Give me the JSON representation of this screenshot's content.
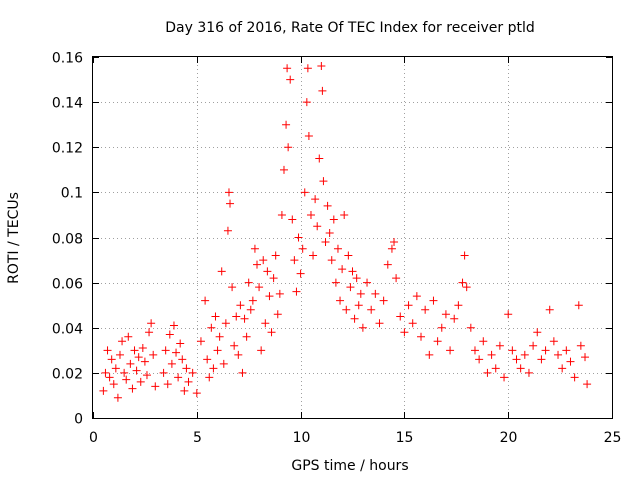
{
  "chart_data": {
    "type": "scatter",
    "title": "Day 316 of 2016, Rate Of TEC Index for receiver ptld",
    "xlabel": "GPS time / hours",
    "ylabel": "ROTI / TECUs",
    "xlim": [
      0,
      25
    ],
    "ylim": [
      0,
      0.16
    ],
    "grid": true,
    "marker": "+",
    "series_color": "#ff0000",
    "xticks": [
      {
        "value": 0,
        "label": "0"
      },
      {
        "value": 5,
        "label": "5"
      },
      {
        "value": 10,
        "label": "10"
      },
      {
        "value": 15,
        "label": "15"
      },
      {
        "value": 20,
        "label": "20"
      },
      {
        "value": 25,
        "label": "25"
      }
    ],
    "yticks": [
      {
        "value": 0,
        "label": "0"
      },
      {
        "value": 0.02,
        "label": "0.02"
      },
      {
        "value": 0.04,
        "label": "0.04"
      },
      {
        "value": 0.06,
        "label": "0.06"
      },
      {
        "value": 0.08,
        "label": "0.08"
      },
      {
        "value": 0.1,
        "label": "0.1"
      },
      {
        "value": 0.12,
        "label": "0.12"
      },
      {
        "value": 0.14,
        "label": "0.14"
      },
      {
        "value": 0.16,
        "label": "0.16"
      }
    ],
    "series": [
      {
        "name": "ROTI",
        "points": [
          [
            0.5,
            0.012
          ],
          [
            0.6,
            0.02
          ],
          [
            0.7,
            0.03
          ],
          [
            0.8,
            0.018
          ],
          [
            0.9,
            0.026
          ],
          [
            1.0,
            0.015
          ],
          [
            1.1,
            0.022
          ],
          [
            1.2,
            0.009
          ],
          [
            1.3,
            0.028
          ],
          [
            1.4,
            0.034
          ],
          [
            1.5,
            0.02
          ],
          [
            1.6,
            0.017
          ],
          [
            1.7,
            0.036
          ],
          [
            1.8,
            0.024
          ],
          [
            1.9,
            0.013
          ],
          [
            2.0,
            0.03
          ],
          [
            2.1,
            0.021
          ],
          [
            2.2,
            0.027
          ],
          [
            2.3,
            0.016
          ],
          [
            2.4,
            0.031
          ],
          [
            2.5,
            0.025
          ],
          [
            2.6,
            0.019
          ],
          [
            2.7,
            0.038
          ],
          [
            2.8,
            0.042
          ],
          [
            2.9,
            0.028
          ],
          [
            3.0,
            0.014
          ],
          [
            3.4,
            0.02
          ],
          [
            3.5,
            0.03
          ],
          [
            3.6,
            0.015
          ],
          [
            3.7,
            0.037
          ],
          [
            3.8,
            0.024
          ],
          [
            3.9,
            0.041
          ],
          [
            4.0,
            0.029
          ],
          [
            4.1,
            0.018
          ],
          [
            4.2,
            0.033
          ],
          [
            4.3,
            0.026
          ],
          [
            4.4,
            0.012
          ],
          [
            4.5,
            0.022
          ],
          [
            4.6,
            0.016
          ],
          [
            4.8,
            0.02
          ],
          [
            5.0,
            0.011
          ],
          [
            5.2,
            0.034
          ],
          [
            5.4,
            0.052
          ],
          [
            5.5,
            0.026
          ],
          [
            5.6,
            0.018
          ],
          [
            5.7,
            0.04
          ],
          [
            5.8,
            0.022
          ],
          [
            5.9,
            0.045
          ],
          [
            6.0,
            0.03
          ],
          [
            6.1,
            0.036
          ],
          [
            6.2,
            0.065
          ],
          [
            6.3,
            0.024
          ],
          [
            6.4,
            0.042
          ],
          [
            6.5,
            0.083
          ],
          [
            6.55,
            0.1
          ],
          [
            6.6,
            0.095
          ],
          [
            6.7,
            0.058
          ],
          [
            6.8,
            0.032
          ],
          [
            6.9,
            0.045
          ],
          [
            7.0,
            0.028
          ],
          [
            7.1,
            0.05
          ],
          [
            7.2,
            0.02
          ],
          [
            7.3,
            0.044
          ],
          [
            7.4,
            0.036
          ],
          [
            7.5,
            0.06
          ],
          [
            7.6,
            0.048
          ],
          [
            7.7,
            0.052
          ],
          [
            7.8,
            0.075
          ],
          [
            7.9,
            0.068
          ],
          [
            8.0,
            0.058
          ],
          [
            8.1,
            0.03
          ],
          [
            8.2,
            0.07
          ],
          [
            8.3,
            0.042
          ],
          [
            8.4,
            0.065
          ],
          [
            8.5,
            0.054
          ],
          [
            8.6,
            0.038
          ],
          [
            8.7,
            0.062
          ],
          [
            8.8,
            0.072
          ],
          [
            8.9,
            0.046
          ],
          [
            9.0,
            0.055
          ],
          [
            9.1,
            0.09
          ],
          [
            9.2,
            0.11
          ],
          [
            9.3,
            0.13
          ],
          [
            9.35,
            0.155
          ],
          [
            9.4,
            0.12
          ],
          [
            9.5,
            0.15
          ],
          [
            9.6,
            0.088
          ],
          [
            9.7,
            0.07
          ],
          [
            9.8,
            0.056
          ],
          [
            9.9,
            0.08
          ],
          [
            10.0,
            0.064
          ],
          [
            10.1,
            0.075
          ],
          [
            10.2,
            0.1
          ],
          [
            10.3,
            0.14
          ],
          [
            10.35,
            0.155
          ],
          [
            10.4,
            0.125
          ],
          [
            10.5,
            0.09
          ],
          [
            10.6,
            0.072
          ],
          [
            10.7,
            0.097
          ],
          [
            10.8,
            0.085
          ],
          [
            10.9,
            0.115
          ],
          [
            11.0,
            0.156
          ],
          [
            11.05,
            0.145
          ],
          [
            11.1,
            0.105
          ],
          [
            11.2,
            0.078
          ],
          [
            11.3,
            0.094
          ],
          [
            11.4,
            0.082
          ],
          [
            11.5,
            0.07
          ],
          [
            11.6,
            0.088
          ],
          [
            11.7,
            0.06
          ],
          [
            11.8,
            0.075
          ],
          [
            11.9,
            0.052
          ],
          [
            12.0,
            0.066
          ],
          [
            12.1,
            0.09
          ],
          [
            12.2,
            0.048
          ],
          [
            12.3,
            0.072
          ],
          [
            12.4,
            0.058
          ],
          [
            12.5,
            0.065
          ],
          [
            12.6,
            0.044
          ],
          [
            12.7,
            0.062
          ],
          [
            12.8,
            0.05
          ],
          [
            12.9,
            0.055
          ],
          [
            13.0,
            0.04
          ],
          [
            13.2,
            0.06
          ],
          [
            13.4,
            0.048
          ],
          [
            13.6,
            0.055
          ],
          [
            13.8,
            0.042
          ],
          [
            14.0,
            0.052
          ],
          [
            14.2,
            0.068
          ],
          [
            14.4,
            0.075
          ],
          [
            14.5,
            0.078
          ],
          [
            14.6,
            0.062
          ],
          [
            14.8,
            0.045
          ],
          [
            15.0,
            0.038
          ],
          [
            15.2,
            0.05
          ],
          [
            15.4,
            0.042
          ],
          [
            15.6,
            0.054
          ],
          [
            15.8,
            0.036
          ],
          [
            16.0,
            0.048
          ],
          [
            16.2,
            0.028
          ],
          [
            16.4,
            0.052
          ],
          [
            16.6,
            0.034
          ],
          [
            16.8,
            0.04
          ],
          [
            17.0,
            0.046
          ],
          [
            17.2,
            0.03
          ],
          [
            17.4,
            0.044
          ],
          [
            17.6,
            0.05
          ],
          [
            17.8,
            0.06
          ],
          [
            17.9,
            0.072
          ],
          [
            18.0,
            0.058
          ],
          [
            18.2,
            0.04
          ],
          [
            18.4,
            0.03
          ],
          [
            18.6,
            0.026
          ],
          [
            18.8,
            0.034
          ],
          [
            19.0,
            0.02
          ],
          [
            19.2,
            0.028
          ],
          [
            19.4,
            0.022
          ],
          [
            19.6,
            0.032
          ],
          [
            19.8,
            0.018
          ],
          [
            20.0,
            0.046
          ],
          [
            20.2,
            0.03
          ],
          [
            20.4,
            0.026
          ],
          [
            20.6,
            0.022
          ],
          [
            20.8,
            0.028
          ],
          [
            21.0,
            0.02
          ],
          [
            21.2,
            0.032
          ],
          [
            21.4,
            0.038
          ],
          [
            21.6,
            0.026
          ],
          [
            21.8,
            0.03
          ],
          [
            22.0,
            0.048
          ],
          [
            22.2,
            0.034
          ],
          [
            22.4,
            0.028
          ],
          [
            22.6,
            0.022
          ],
          [
            22.8,
            0.03
          ],
          [
            23.0,
            0.025
          ],
          [
            23.2,
            0.018
          ],
          [
            23.4,
            0.05
          ],
          [
            23.5,
            0.032
          ],
          [
            23.7,
            0.027
          ],
          [
            23.8,
            0.015
          ]
        ]
      }
    ]
  }
}
